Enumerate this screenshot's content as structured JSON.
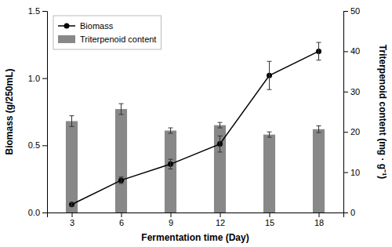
{
  "chart_data": {
    "type": "bar",
    "x": [
      3,
      6,
      9,
      12,
      15,
      18
    ],
    "xlim": [
      1.5,
      19.5
    ],
    "xticks": [
      3,
      6,
      9,
      12,
      15,
      18
    ],
    "xlabel": "Fermentation time (Day)",
    "ylabel": "Biomass (g/250mL)",
    "y2label": "Triterpenoid content (mg · g⁻¹)",
    "ylim": [
      0.0,
      1.5
    ],
    "yticks": [
      {
        "value": 0.0,
        "label": "0.0"
      },
      0.5,
      {
        "value": 1.0,
        "label": "1.0"
      },
      1.5
    ],
    "y2lim": [
      0,
      50
    ],
    "y2ticks": [
      0,
      10,
      20,
      30,
      40,
      50
    ],
    "legend": "upper left",
    "series": [
      {
        "name": "Triterpenoid content",
        "type": "bar",
        "color": "#888888",
        "values": [
          0.68,
          0.77,
          0.61,
          0.65,
          0.58,
          0.62
        ],
        "errors": [
          0.04,
          0.04,
          0.02,
          0.02,
          0.02,
          0.025
        ]
      },
      {
        "name": "Biomass",
        "type": "line",
        "axis": "y2",
        "color": "#000000",
        "marker": "circle",
        "values": [
          2.0,
          8.0,
          12.0,
          17.0,
          34.0,
          40.0
        ],
        "errors": [
          0.4,
          0.8,
          1.2,
          2.0,
          3.5,
          2.2
        ]
      }
    ]
  }
}
